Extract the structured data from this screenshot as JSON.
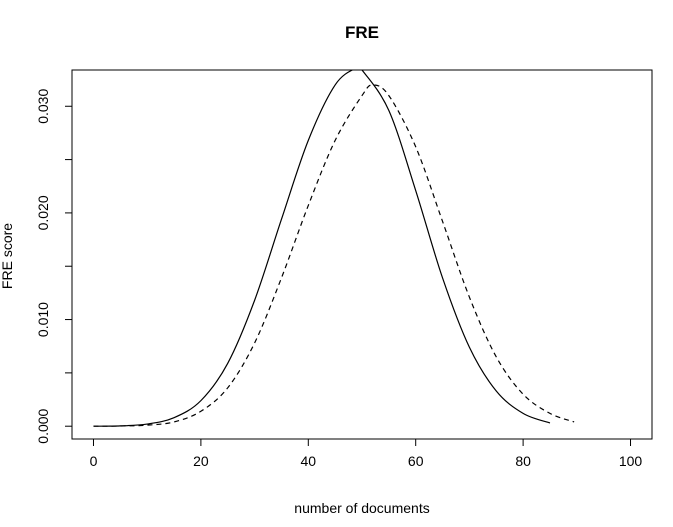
{
  "chart_data": {
    "type": "line",
    "title": "FRE",
    "xlabel": "number of documents",
    "ylabel": "FRE score",
    "xlim": [
      -4,
      104
    ],
    "ylim": [
      -0.0012,
      0.0334
    ],
    "xticks": [
      0,
      20,
      40,
      60,
      80,
      100
    ],
    "xtick_labels": [
      "0",
      "20",
      "40",
      "60",
      "80",
      "100"
    ],
    "yticks": [
      0.0,
      0.005,
      0.01,
      0.015,
      0.02,
      0.025,
      0.03
    ],
    "ytick_labels": [
      "0.000",
      "",
      "0.010",
      "",
      "0.020",
      "",
      "0.030"
    ],
    "grid": false,
    "legend": "none",
    "series": [
      {
        "style": "solid",
        "color": "#000000",
        "x": [
          0,
          5,
          10,
          15,
          20,
          25,
          30,
          35,
          40,
          45,
          49,
          50,
          55,
          60,
          65,
          70,
          75,
          80,
          85
        ],
        "y": [
          0.0,
          3e-05,
          0.0002,
          0.0008,
          0.0024,
          0.0059,
          0.0118,
          0.0194,
          0.0268,
          0.032,
          0.0336,
          0.0334,
          0.0296,
          0.0221,
          0.0139,
          0.0074,
          0.0033,
          0.0012,
          0.0003
        ]
      },
      {
        "style": "dashed",
        "color": "#000000",
        "x": [
          0,
          5,
          10,
          15,
          20,
          25,
          30,
          35,
          40,
          45,
          50,
          52,
          55,
          60,
          65,
          70,
          75,
          80,
          85,
          89.5
        ],
        "y": [
          0.0,
          2e-05,
          0.0001,
          0.0004,
          0.0014,
          0.0036,
          0.0078,
          0.0139,
          0.0207,
          0.0268,
          0.031,
          0.032,
          0.031,
          0.0262,
          0.0192,
          0.0121,
          0.0065,
          0.003,
          0.0012,
          0.0004
        ]
      }
    ]
  }
}
